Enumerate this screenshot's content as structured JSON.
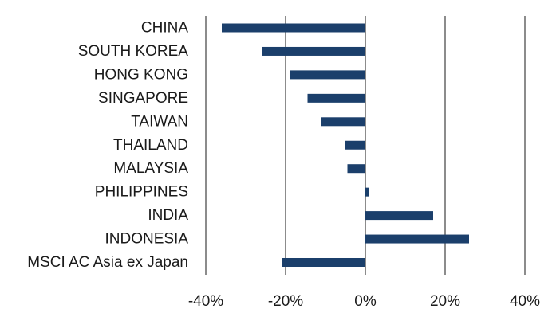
{
  "chart_data": {
    "type": "bar",
    "orientation": "horizontal",
    "title": "",
    "xlabel": "",
    "ylabel": "",
    "categories": [
      "CHINA",
      "SOUTH KOREA",
      "HONG KONG",
      "SINGAPORE",
      "TAIWAN",
      "THAILAND",
      "MALAYSIA",
      "PHILIPPINES",
      "INDIA",
      "INDONESIA",
      "MSCI AC Asia ex Japan"
    ],
    "values": [
      -36,
      -26,
      -19,
      -14.5,
      -11,
      -5,
      -4.5,
      1,
      17,
      26,
      -21
    ],
    "unit": "%",
    "xlim": [
      -40,
      40
    ],
    "xticks": [
      -40,
      -20,
      0,
      20,
      40
    ],
    "xtick_labels": [
      "-40%",
      "-20%",
      "0%",
      "20%",
      "40%"
    ],
    "grid": "vertical",
    "legend": "none",
    "bar_color": "#1b3f6b",
    "grid_color": "#8c8c8c"
  }
}
